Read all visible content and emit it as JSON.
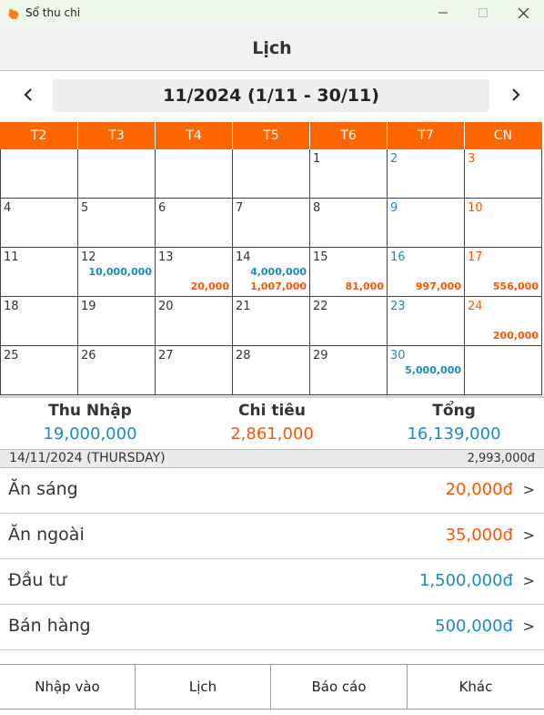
{
  "window": {
    "title": "Sổ thu chi",
    "app_icon": "piggy-bank-icon"
  },
  "header": {
    "title": "Lịch"
  },
  "month_nav": {
    "label": "11/2024 (1/11 - 30/11)",
    "prev_icon": "chevron-left-icon",
    "next_icon": "chevron-right-icon"
  },
  "calendar": {
    "weekdays": [
      "T2",
      "T3",
      "T4",
      "T5",
      "T6",
      "T7",
      "CN"
    ],
    "days": [
      {
        "day": "",
        "income": "",
        "expense": ""
      },
      {
        "day": "",
        "income": "",
        "expense": ""
      },
      {
        "day": "",
        "income": "",
        "expense": ""
      },
      {
        "day": "",
        "income": "",
        "expense": ""
      },
      {
        "day": "1",
        "income": "",
        "expense": ""
      },
      {
        "day": "2",
        "income": "",
        "expense": ""
      },
      {
        "day": "3",
        "income": "",
        "expense": ""
      },
      {
        "day": "4",
        "income": "",
        "expense": ""
      },
      {
        "day": "5",
        "income": "",
        "expense": ""
      },
      {
        "day": "6",
        "income": "",
        "expense": ""
      },
      {
        "day": "7",
        "income": "",
        "expense": ""
      },
      {
        "day": "8",
        "income": "",
        "expense": ""
      },
      {
        "day": "9",
        "income": "",
        "expense": ""
      },
      {
        "day": "10",
        "income": "",
        "expense": ""
      },
      {
        "day": "11",
        "income": "",
        "expense": ""
      },
      {
        "day": "12",
        "income": "10,000,000",
        "expense": ""
      },
      {
        "day": "13",
        "income": "",
        "expense": "20,000"
      },
      {
        "day": "14",
        "income": "4,000,000",
        "expense": "1,007,000"
      },
      {
        "day": "15",
        "income": "",
        "expense": "81,000"
      },
      {
        "day": "16",
        "income": "",
        "expense": "997,000"
      },
      {
        "day": "17",
        "income": "",
        "expense": "556,000"
      },
      {
        "day": "18",
        "income": "",
        "expense": ""
      },
      {
        "day": "19",
        "income": "",
        "expense": ""
      },
      {
        "day": "20",
        "income": "",
        "expense": ""
      },
      {
        "day": "21",
        "income": "",
        "expense": ""
      },
      {
        "day": "22",
        "income": "",
        "expense": ""
      },
      {
        "day": "23",
        "income": "",
        "expense": ""
      },
      {
        "day": "24",
        "income": "",
        "expense": "200,000"
      },
      {
        "day": "25",
        "income": "",
        "expense": ""
      },
      {
        "day": "26",
        "income": "",
        "expense": ""
      },
      {
        "day": "27",
        "income": "",
        "expense": ""
      },
      {
        "day": "28",
        "income": "",
        "expense": ""
      },
      {
        "day": "29",
        "income": "",
        "expense": ""
      },
      {
        "day": "30",
        "income": "5,000,000",
        "expense": ""
      },
      {
        "day": "",
        "income": "",
        "expense": ""
      }
    ]
  },
  "summary": {
    "income_label": "Thu Nhập",
    "income_value": "19,000,000",
    "expense_label": "Chi tiêu",
    "expense_value": "2,861,000",
    "total_label": "Tổng",
    "total_value": "16,139,000"
  },
  "selected_day": {
    "date": "14/11/2024 (THURSDAY)",
    "total": "2,993,000đ"
  },
  "transactions": [
    {
      "name": "Ăn sáng",
      "amount": "20,000đ",
      "type": "expense"
    },
    {
      "name": "Ăn ngoài",
      "amount": "35,000đ",
      "type": "expense"
    },
    {
      "name": "Đầu tư",
      "amount": "1,500,000đ",
      "type": "income"
    },
    {
      "name": "Bán hàng",
      "amount": "500,000đ",
      "type": "income"
    }
  ],
  "chevron": ">",
  "bottom_nav": [
    {
      "label": "Nhập vào"
    },
    {
      "label": "Lịch"
    },
    {
      "label": "Báo cáo"
    },
    {
      "label": "Khác"
    }
  ],
  "colors": {
    "accent": "#ff6600",
    "income": "#1a8ac4",
    "expense": "#ff5500"
  }
}
